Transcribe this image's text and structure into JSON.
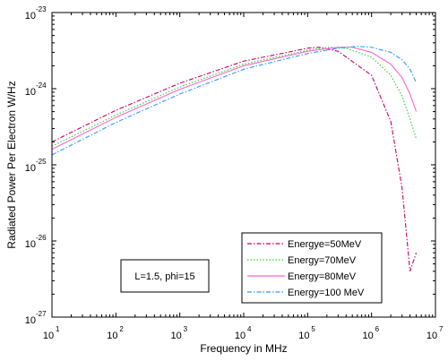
{
  "chart_data": {
    "type": "line",
    "xlabel": "Frequency  in MHz",
    "ylabel": "Radiated Power Per Electron W/Hz",
    "x_scale": "log",
    "y_scale": "log",
    "xlim": [
      10,
      10000000
    ],
    "ylim": [
      1e-27,
      1e-23
    ],
    "x_ticks": [
      {
        "base": "10",
        "exp": "1"
      },
      {
        "base": "10",
        "exp": "2"
      },
      {
        "base": "10",
        "exp": "3"
      },
      {
        "base": "10",
        "exp": "4"
      },
      {
        "base": "10",
        "exp": "5"
      },
      {
        "base": "10",
        "exp": "6"
      },
      {
        "base": "10",
        "exp": "7"
      }
    ],
    "y_ticks": [
      {
        "base": "10",
        "exp": "-27"
      },
      {
        "base": "10",
        "exp": "-26"
      },
      {
        "base": "10",
        "exp": "-25"
      },
      {
        "base": "10",
        "exp": "-24"
      },
      {
        "base": "10",
        "exp": "-23"
      }
    ],
    "grid": false,
    "legend_position": "lower-right",
    "annotation": "L=1.5, phi=15",
    "series": [
      {
        "name": "Energye=50MeV",
        "color": "#cc0066",
        "style": "dashdot",
        "x": [
          10,
          100,
          1000,
          10000,
          100000,
          150000,
          300000,
          1000000,
          2000000,
          3000000,
          4000000,
          5000000
        ],
        "y": [
          2e-25,
          5.2e-25,
          1.18e-24,
          2.3e-24,
          3.4e-24,
          3.5e-24,
          3.1e-24,
          1.5e-24,
          3.7e-25,
          5e-26,
          4e-27,
          7e-27
        ]
      },
      {
        "name": "Energy=70MeV",
        "color": "#33cc33",
        "style": "dotted",
        "x": [
          10,
          100,
          1000,
          10000,
          100000,
          200000,
          400000,
          1000000,
          2000000,
          3000000,
          4000000,
          5000000
        ],
        "y": [
          1.75e-25,
          4.5e-25,
          1.05e-24,
          2.1e-24,
          3.2e-24,
          3.5e-24,
          3.4e-24,
          2.6e-24,
          1.5e-24,
          8e-25,
          4e-25,
          2.2e-25
        ]
      },
      {
        "name": "Energy=80MeV",
        "color": "#ff66cc",
        "style": "solid",
        "x": [
          10,
          100,
          1000,
          10000,
          100000,
          300000,
          500000,
          1000000,
          2000000,
          3000000,
          4000000,
          5000000
        ],
        "y": [
          1.6e-25,
          4.2e-25,
          9.8e-25,
          2e-24,
          3.1e-24,
          3.5e-24,
          3.5e-24,
          3e-24,
          2.1e-24,
          1.4e-24,
          8.5e-25,
          5e-25
        ]
      },
      {
        "name": "Energy=100 MeV",
        "color": "#3399ff",
        "style": "dashdot",
        "x": [
          10,
          100,
          1000,
          10000,
          100000,
          300000,
          600000,
          1000000,
          2000000,
          3000000,
          4000000,
          5000000
        ],
        "y": [
          1.35e-25,
          3.6e-25,
          8.5e-25,
          1.8e-24,
          2.9e-24,
          3.4e-24,
          3.6e-24,
          3.5e-24,
          3e-24,
          2.4e-24,
          1.8e-24,
          1.2e-24
        ]
      }
    ]
  }
}
